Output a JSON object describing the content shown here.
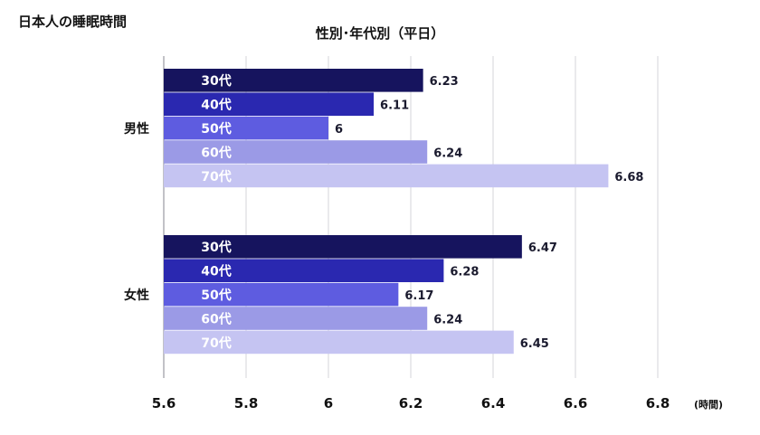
{
  "page_title": "日本人の睡眠時間",
  "chart_data": {
    "type": "bar",
    "orientation": "horizontal",
    "title": "性別･年代別（平日）",
    "xlabel": "(時間)",
    "ylabel": "",
    "xlim": [
      5.6,
      6.8
    ],
    "ticks": [
      5.6,
      5.8,
      6,
      6.2,
      6.4,
      6.6,
      6.8
    ],
    "tick_labels": [
      "5.6",
      "5.8",
      "6",
      "6.2",
      "6.4",
      "6.6",
      "6.8"
    ],
    "grid": true,
    "groups": [
      "男性",
      "女性"
    ],
    "series": [
      {
        "name": "30代",
        "color": "#16145e",
        "values": [
          6.23,
          6.47
        ]
      },
      {
        "name": "40代",
        "color": "#2a28b0",
        "values": [
          6.11,
          6.28
        ]
      },
      {
        "name": "50代",
        "color": "#5e5ce0",
        "values": [
          6,
          6.17
        ]
      },
      {
        "name": "60代",
        "color": "#9b9ae6",
        "values": [
          6.24,
          6.24
        ]
      },
      {
        "name": "70代",
        "color": "#c5c4f2",
        "values": [
          6.68,
          6.45
        ]
      }
    ],
    "value_labels": [
      [
        "6.23",
        "6.11",
        "6",
        "6.24",
        "6.68"
      ],
      [
        "6.47",
        "6.28",
        "6.17",
        "6.24",
        "6.45"
      ]
    ]
  }
}
